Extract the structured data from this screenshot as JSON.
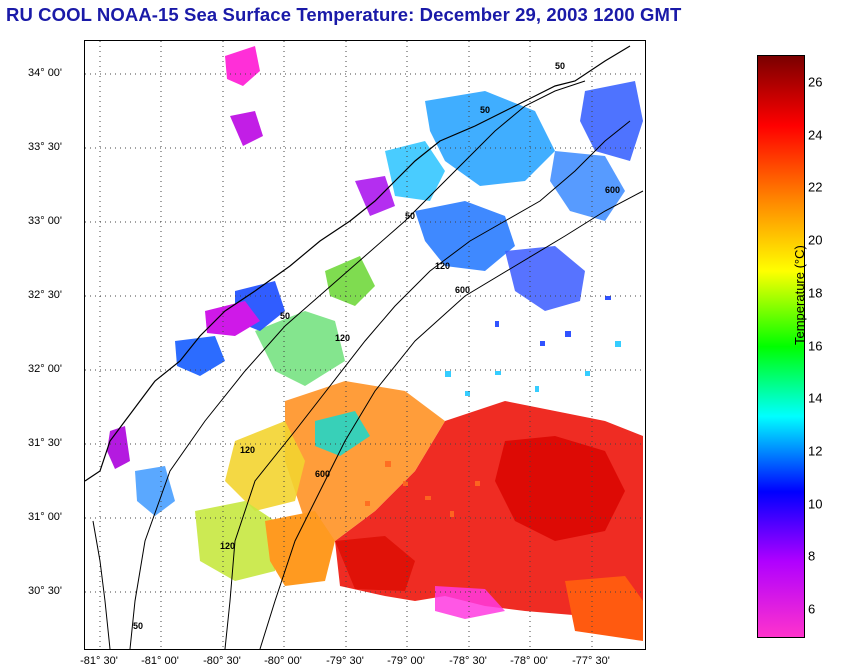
{
  "title": "RU COOL  NOAA-15  Sea Surface Temperature:  December 29, 2003 1200 GMT",
  "map": {
    "lat_labels": [
      "34° 00'",
      "33° 30'",
      "33° 00'",
      "32° 30'",
      "32° 00'",
      "31° 30'",
      "31° 00'",
      "30° 30'"
    ],
    "lon_labels": [
      "-81° 30'",
      "-81° 00'",
      "-80° 30'",
      "-80° 00'",
      "-79° 30'",
      "-79° 00'",
      "-78° 30'",
      "-78° 00'",
      "-77° 30'"
    ],
    "isobath_labels": [
      "50",
      "50",
      "50",
      "50",
      "50",
      "120",
      "120",
      "120",
      "120",
      "600",
      "600",
      "600"
    ]
  },
  "colorbar": {
    "title": "Temperature (°C)",
    "ticks": [
      "26",
      "24",
      "22",
      "20",
      "18",
      "16",
      "14",
      "12",
      "10",
      "8",
      "6"
    ],
    "range": [
      5,
      27
    ],
    "colors": [
      "#ff33cc",
      "#b000ff",
      "#0000ff",
      "#00ffff",
      "#00ff00",
      "#ffff00",
      "#ff8800",
      "#ff0000",
      "#7a0000"
    ]
  }
}
